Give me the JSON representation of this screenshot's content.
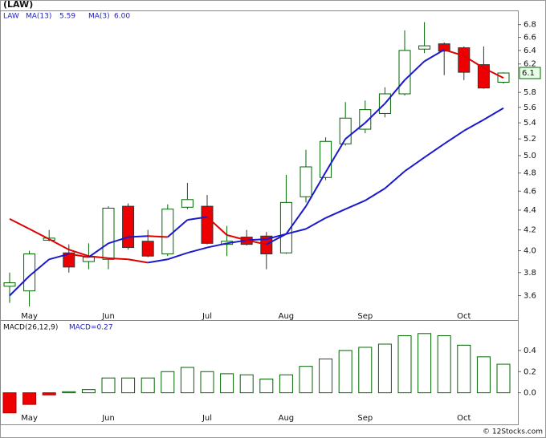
{
  "chart_data": [
    {
      "type": "candlestick",
      "title": "(LAW)",
      "ticker": "LAW",
      "categories": [
        null,
        "May",
        null,
        null,
        null,
        "Jun",
        null,
        null,
        null,
        null,
        "Jul",
        null,
        null,
        null,
        "Aug",
        null,
        null,
        null,
        "Sep",
        null,
        null,
        null,
        null,
        "Oct",
        null,
        null
      ],
      "open": [
        3.68,
        3.64,
        4.1,
        3.98,
        3.9,
        3.92,
        4.44,
        4.09,
        3.97,
        4.43,
        4.44,
        4.06,
        4.13,
        4.14,
        3.98,
        4.54,
        4.75,
        5.14,
        5.32,
        5.52,
        5.78,
        6.42,
        6.5,
        6.44,
        6.19,
        5.94
      ],
      "high": [
        3.8,
        4.0,
        4.2,
        4.06,
        4.07,
        4.44,
        4.47,
        4.2,
        4.46,
        4.69,
        4.56,
        4.24,
        4.2,
        4.18,
        4.78,
        5.07,
        5.22,
        5.67,
        5.69,
        5.87,
        6.71,
        6.84,
        6.52,
        6.46,
        6.46,
        6.08
      ],
      "low": [
        3.54,
        3.51,
        4.09,
        3.8,
        3.83,
        3.83,
        4.01,
        3.94,
        3.95,
        4.41,
        4.06,
        3.95,
        4.05,
        3.83,
        3.97,
        4.48,
        4.72,
        5.12,
        5.27,
        5.47,
        5.76,
        6.36,
        6.04,
        5.97,
        5.85,
        5.92
      ],
      "close": [
        3.71,
        3.97,
        4.12,
        3.85,
        3.94,
        4.42,
        4.03,
        3.95,
        4.41,
        4.51,
        4.07,
        4.09,
        4.06,
        3.97,
        4.48,
        4.87,
        5.17,
        5.46,
        5.57,
        5.78,
        6.4,
        6.47,
        6.39,
        6.08,
        5.86,
        6.07
      ],
      "up_color": "#006600",
      "down_color": "#ee0000",
      "series": [
        {
          "name": "MA(13)",
          "legend_value": "5.59",
          "values": [
            4.31,
            4.21,
            4.11,
            4.01,
            3.95,
            3.93,
            3.92,
            3.89,
            3.92,
            3.98,
            4.03,
            4.07,
            4.1,
            4.11,
            4.16,
            4.21,
            4.32,
            4.41,
            4.5,
            4.63,
            4.82,
            4.98,
            5.14,
            5.3,
            5.44,
            5.59
          ]
        },
        {
          "name": "MA(3)",
          "legend_value": "6.00",
          "values": [
            3.6,
            3.77,
            3.92,
            3.97,
            3.94,
            4.07,
            4.13,
            4.14,
            4.13,
            4.3,
            4.33,
            4.15,
            4.1,
            4.06,
            4.16,
            4.44,
            4.81,
            5.2,
            5.4,
            5.65,
            5.97,
            6.24,
            6.41,
            6.32,
            6.14,
            6.0
          ]
        }
      ],
      "line_up_color": "#1a1acc",
      "line_down_color": "#dd0000",
      "log_scale": true,
      "ylim": [
        3.49,
        7.03
      ],
      "yticks": [
        3.6,
        3.8,
        {
          "value": 4,
          "label": "4.0"
        },
        4.2,
        4.4,
        4.6,
        4.8,
        {
          "value": 5,
          "label": "5.0"
        },
        5.2,
        5.4,
        5.6,
        5.8,
        6.2,
        6.4,
        6.6,
        6.8
      ],
      "last_price": {
        "value": 6.07,
        "label": "6.1"
      }
    },
    {
      "type": "bar",
      "title": "MACD(26,12,9)",
      "macd_label": "MACD=0.27",
      "categories": [
        null,
        "May",
        null,
        null,
        null,
        "Jun",
        null,
        null,
        null,
        null,
        "Jul",
        null,
        null,
        null,
        "Aug",
        null,
        null,
        null,
        "Sep",
        null,
        null,
        null,
        null,
        "Oct",
        null,
        null
      ],
      "values": [
        -0.19,
        -0.11,
        -0.02,
        0.01,
        0.03,
        0.14,
        0.14,
        0.14,
        0.2,
        0.24,
        0.2,
        0.18,
        0.17,
        0.13,
        0.17,
        0.25,
        0.32,
        0.4,
        0.43,
        0.46,
        0.54,
        0.56,
        0.54,
        0.45,
        0.34,
        0.27
      ],
      "up_color": "#006600",
      "down_color": "#ee0000",
      "ylim": [
        -0.2,
        0.68
      ],
      "yticks": [
        {
          "value": 0,
          "label": "0.0"
        },
        0.2,
        0.4
      ]
    },
    {
      "type": "footer",
      "text": "© 12Stocks.com"
    }
  ]
}
